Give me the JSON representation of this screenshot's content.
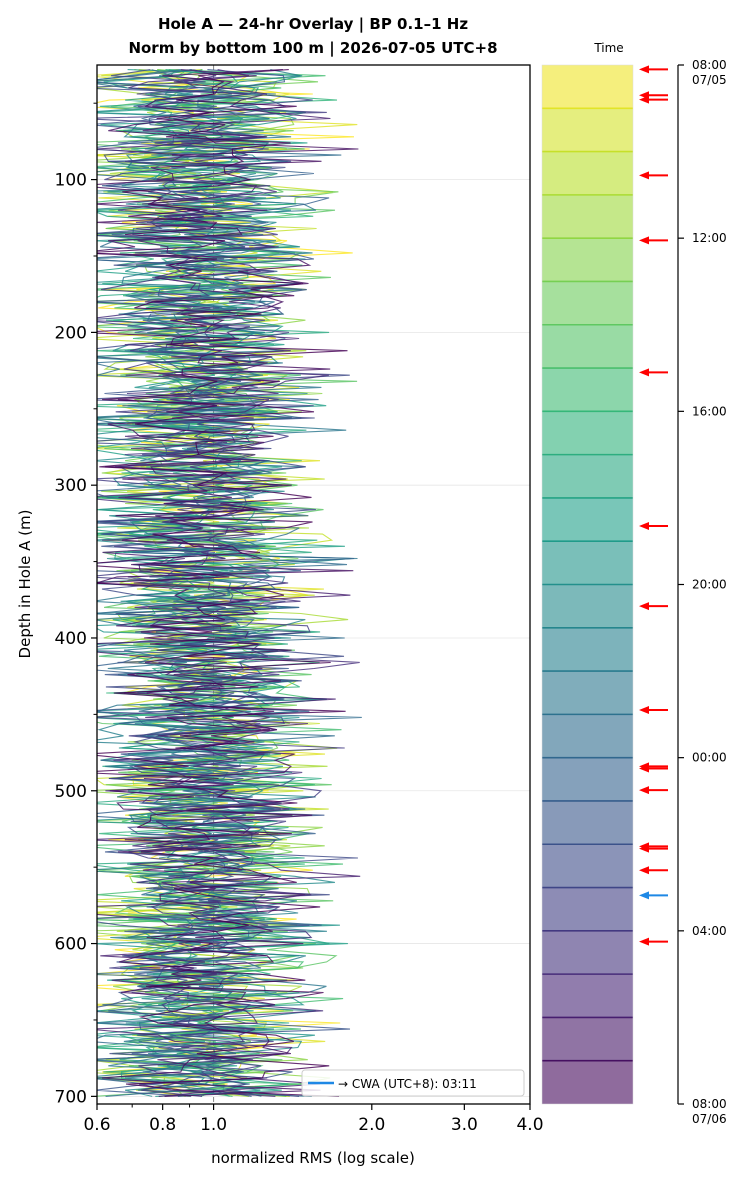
{
  "figure": {
    "title_line1": "Hole A — 24-hr Overlay  |  BP 0.1–1 Hz",
    "title_line2": "Norm by bottom 100 m  |  2026-07-05 UTC+8"
  },
  "chart_data": [
    {
      "type": "line",
      "xlabel": "normalized RMS  (log scale)",
      "ylabel": "Depth in Hole A (m)",
      "xscale": "log",
      "xlim": [
        0.6,
        4.0
      ],
      "ylim": [
        705,
        25
      ],
      "xticks": [
        0.6,
        0.8,
        1.0,
        2.0,
        3.0,
        4.0
      ],
      "xtick_labels": [
        "0.6",
        "0.8",
        "1.0",
        "2.0",
        "3.0",
        "4.0"
      ],
      "yticks": [
        100,
        200,
        300,
        400,
        500,
        600,
        700
      ],
      "ytick_labels": [
        "100",
        "200",
        "300",
        "400",
        "500",
        "600",
        "700"
      ],
      "grid": "y",
      "reference_line_x": 1.0,
      "colormap": "viridis",
      "depth_range": [
        28,
        700
      ],
      "series_count": 24,
      "legend_placement": "lower-right",
      "legend": "→ CWA (UTC+8): 03:11",
      "legend_color": "#1e88e5"
    },
    {
      "type": "heatmap",
      "label": "Time",
      "colormap": "viridis",
      "band_count": 24,
      "tick_labels": [
        "08:00\n07/05",
        "12:00",
        "16:00",
        "20:00",
        "00:00",
        "04:00",
        "08:00\n07/06"
      ],
      "tick_hours": [
        0,
        4,
        8,
        12,
        16,
        20,
        24
      ],
      "event_marker_hours": [
        0.1,
        0.7,
        0.8,
        2.55,
        4.05,
        7.1,
        10.65,
        12.5,
        14.9,
        16.2,
        16.25,
        16.75,
        18.05,
        18.1,
        18.6,
        20.25
      ],
      "event_marker_color": "#ff0000",
      "cwa_marker_hour": 19.18,
      "cwa_marker_color": "#1e88e5"
    }
  ]
}
